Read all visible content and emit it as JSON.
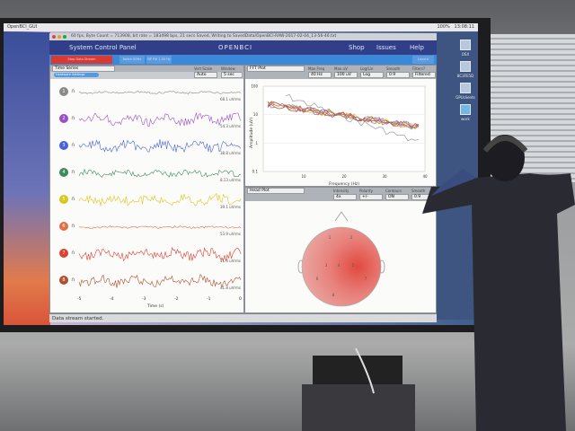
{
  "menubar": {
    "app": "OpenBCI_GUI",
    "battery": "100%",
    "clock": "13:08:11"
  },
  "window": {
    "title": "60 fps, Byte Count = 713908, bit rate = 183498 bps, 21 secs Saved, Writing to SavedData/OpenBCI-RAW-2017-02-04_13-56-46.txt"
  },
  "header": {
    "control_panel": "System Control Panel",
    "logo": "OPENBCI",
    "nav": [
      "Shop",
      "Issues",
      "Help"
    ]
  },
  "toolbar": {
    "stop": "Stop Data Stream",
    "filter1": "Notch 60Hz",
    "filter2": "BP Filt 1-50 Hz",
    "layout": "Layout"
  },
  "time_series": {
    "title": "Time Series",
    "toggle": "Hardware Settings",
    "vert_scale_label": "Vert Scale",
    "window_label": "Window",
    "vert_scale": "Auto",
    "window": "5 sec",
    "channels": [
      {
        "n": "1",
        "color": "#8a8a8a",
        "rms": "68.1 uVrms"
      },
      {
        "n": "2",
        "color": "#9b4fc8",
        "rms": "54.3 uVrms"
      },
      {
        "n": "3",
        "color": "#4a62d8",
        "rms": "38.8 uVrms"
      },
      {
        "n": "4",
        "color": "#3f8a5a",
        "rms": "8.13 uVrms"
      },
      {
        "n": "5",
        "color": "#d8c81e",
        "rms": "39.1 uVrms"
      },
      {
        "n": "6",
        "color": "#e07048",
        "rms": "53.9 uVrms"
      },
      {
        "n": "7",
        "color": "#e04030",
        "rms": "41.4 uVrms"
      },
      {
        "n": "8",
        "color": "#b05030",
        "rms": "41.8 uVrms"
      }
    ],
    "x_ticks": [
      "-5",
      "-4",
      "-3",
      "-2",
      "-1",
      "0"
    ],
    "xlabel": "Time (s)"
  },
  "fft": {
    "title": "FFT Plot",
    "controls": [
      {
        "label": "Max Freq",
        "value": "40 Hz"
      },
      {
        "label": "Max uV",
        "value": "100 uV"
      },
      {
        "label": "Log/Lin",
        "value": "Log"
      },
      {
        "label": "Smooth",
        "value": "0.9"
      },
      {
        "label": "Filters?",
        "value": "Filtered"
      }
    ],
    "ylabel": "Amplitude (uV)",
    "xlabel": "Frequency (Hz)",
    "y_ticks": [
      "100",
      "10",
      "1",
      "0.1"
    ],
    "x_ticks": [
      "10",
      "20",
      "30",
      "40"
    ]
  },
  "head_plot": {
    "title": "Head Plot",
    "controls": [
      {
        "label": "Intensity",
        "value": "4x"
      },
      {
        "label": "Polarity",
        "value": "+/-"
      },
      {
        "label": "Contours",
        "value": "ON"
      },
      {
        "label": "Smooth",
        "value": "0.9"
      }
    ],
    "electrodes": [
      "1",
      "2",
      "3",
      "4",
      "5",
      "6",
      "7",
      "8"
    ]
  },
  "status": "Data stream started.",
  "desktop_icons": [
    "OSX",
    "8C3FE5D",
    "GPUclients",
    "work"
  ]
}
